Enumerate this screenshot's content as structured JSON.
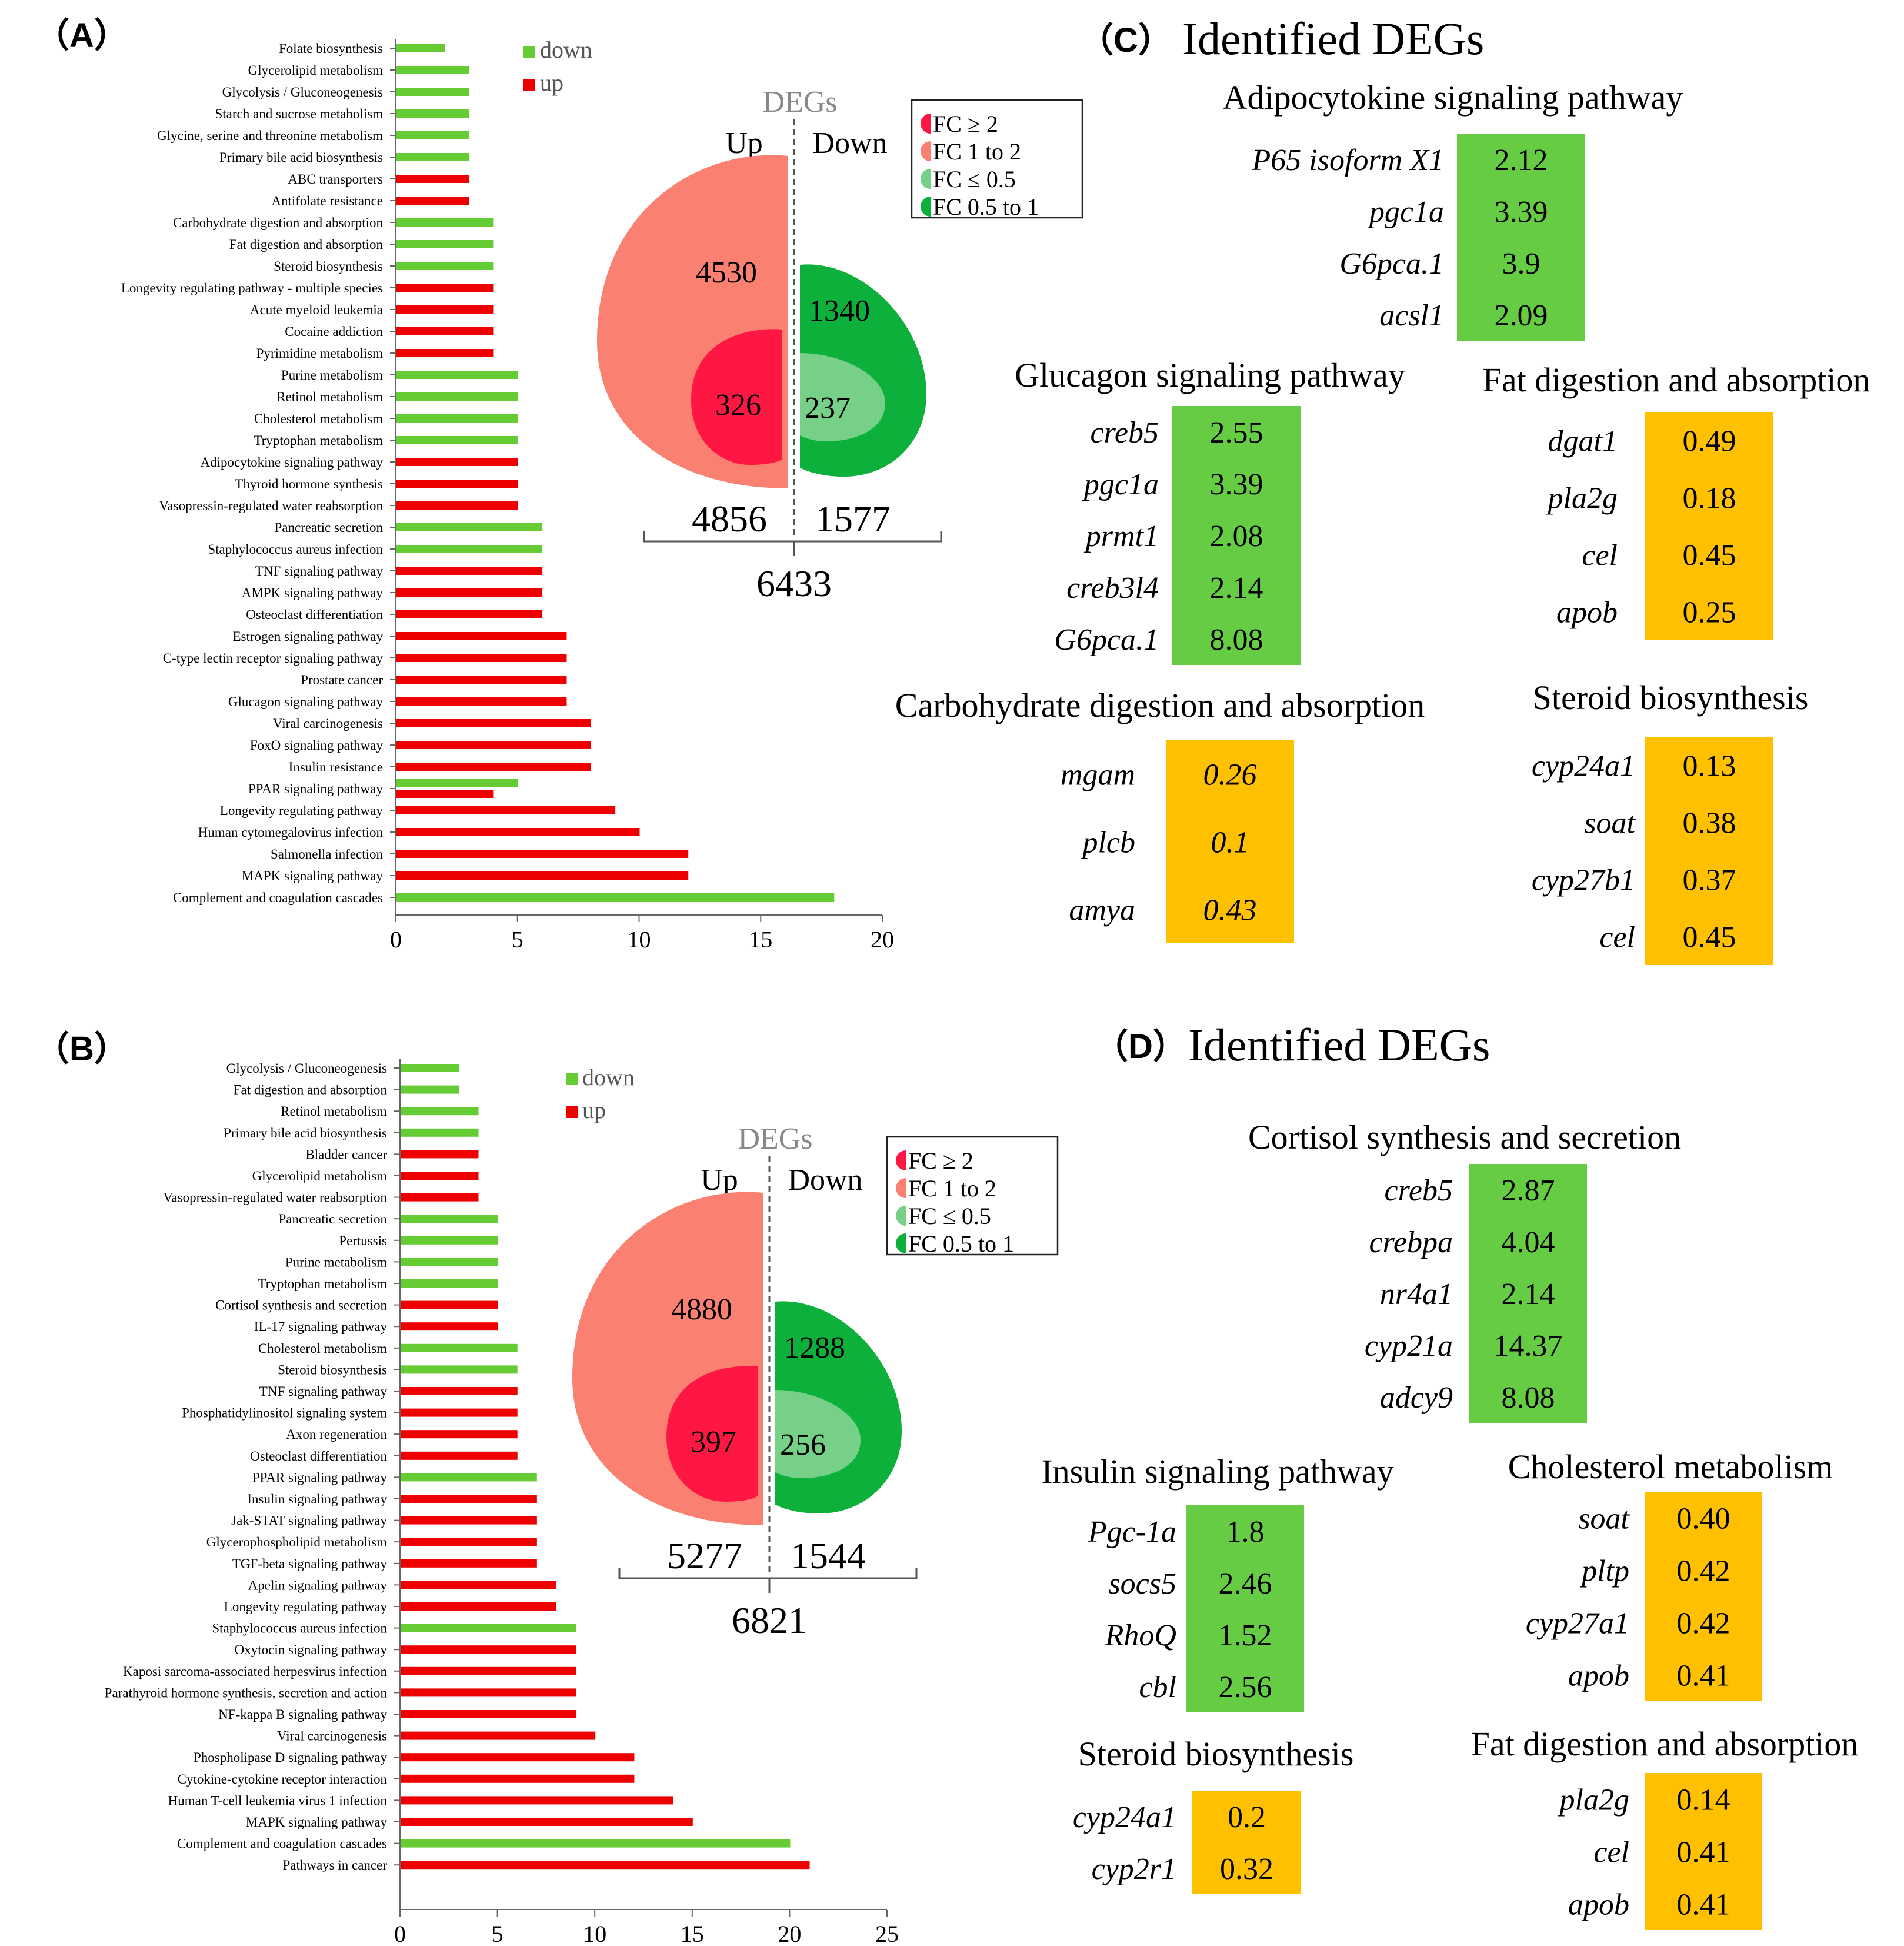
{
  "colors": {
    "down": "#66CC33",
    "up": "#EE0000",
    "fc_ge2": "#FF1744",
    "fc_1to2": "#FA8072",
    "fc_le05": "#77D087",
    "fc_05to1": "#0DB03B",
    "deg_green": "#66CC44",
    "deg_orange": "#FFC000",
    "axis": "#666666",
    "deg_title": "#888888"
  },
  "panels": {
    "A": {
      "label": "（A）"
    },
    "B": {
      "label": "（B）"
    },
    "C": {
      "label": "（C）",
      "title": "Identified DEGs"
    },
    "D": {
      "label": "（D）",
      "title": "Identified DEGs"
    }
  },
  "legend": {
    "down": "down",
    "up": "up"
  },
  "fc_legend": [
    "FC ≥ 2",
    "FC 1 to 2",
    "FC ≤ 0.5",
    "FC 0.5 to 1"
  ],
  "chart_data": [
    {
      "id": "A",
      "type": "bar",
      "orientation": "horizontal",
      "categories": [
        "Folate biosynthesis",
        "Glycerolipid metabolism",
        "Glycolysis / Gluconeogenesis",
        "Starch and sucrose metabolism",
        "Glycine, serine and threonine metabolism",
        "Primary bile acid biosynthesis",
        "ABC transporters",
        "Antifolate resistance",
        "Carbohydrate digestion and absorption",
        "Fat digestion and absorption",
        "Steroid biosynthesis",
        "Longevity regulating pathway - multiple species",
        "Acute myeloid leukemia",
        "Cocaine addiction",
        "Pyrimidine metabolism",
        "Purine metabolism",
        "Retinol metabolism",
        "Cholesterol metabolism",
        "Tryptophan metabolism",
        "Adipocytokine signaling pathway",
        "Thyroid hormone synthesis",
        "Vasopressin-regulated water reabsorption",
        "Pancreatic secretion",
        "Staphylococcus aureus infection",
        "TNF signaling pathway",
        "AMPK signaling pathway",
        "Osteoclast differentiation",
        "Estrogen signaling pathway",
        "C-type lectin receptor signaling pathway",
        "Prostate cancer",
        "Glucagon signaling pathway",
        "Viral carcinogenesis",
        "FoxO signaling pathway",
        "Insulin resistance",
        "PPAR signaling pathway",
        "Longevity regulating pathway",
        "Human cytomegalovirus infection",
        "Salmonella infection",
        "MAPK signaling pathway",
        "Complement and coagulation cascades"
      ],
      "series": [
        {
          "name": "down",
          "values": [
            2,
            3,
            3,
            3,
            3,
            3,
            0,
            0,
            4,
            4,
            4,
            0,
            0,
            0,
            0,
            5,
            5,
            5,
            5,
            0,
            0,
            0,
            6,
            6,
            0,
            0,
            0,
            0,
            0,
            0,
            0,
            0,
            0,
            0,
            5,
            0,
            0,
            0,
            0,
            18
          ]
        },
        {
          "name": "up",
          "values": [
            0,
            0,
            0,
            0,
            0,
            0,
            3,
            3,
            0,
            0,
            0,
            4,
            4,
            4,
            4,
            0,
            0,
            0,
            0,
            5,
            5,
            5,
            0,
            0,
            6,
            6,
            6,
            7,
            7,
            7,
            7,
            8,
            8,
            8,
            4,
            9,
            10,
            12,
            12,
            0
          ]
        }
      ],
      "xlim": [
        0,
        20
      ],
      "xticks": [
        "0",
        "5",
        "10",
        "15",
        "20"
      ],
      "legend_position": "top-right"
    },
    {
      "id": "B",
      "type": "bar",
      "orientation": "horizontal",
      "categories": [
        "Glycolysis / Gluconeogenesis",
        "Fat digestion and absorption",
        "Retinol metabolism",
        "Primary bile acid biosynthesis",
        "Bladder cancer",
        "Glycerolipid metabolism",
        "Vasopressin-regulated water reabsorption",
        "Pancreatic secretion",
        "Pertussis",
        "Purine metabolism",
        "Tryptophan metabolism",
        "Cortisol synthesis and secretion",
        "IL-17 signaling pathway",
        "Cholesterol metabolism",
        "Steroid biosynthesis",
        "TNF signaling pathway",
        "Phosphatidylinositol signaling system",
        "Axon regeneration",
        "Osteoclast differentiation",
        "PPAR signaling pathway",
        "Insulin signaling pathway",
        "Jak-STAT signaling pathway",
        "Glycerophospholipid metabolism",
        "TGF-beta signaling pathway",
        "Apelin signaling pathway",
        "Longevity regulating pathway",
        "Staphylococcus aureus infection",
        "Oxytocin signaling pathway",
        "Kaposi sarcoma-associated herpesvirus infection",
        "Parathyroid hormone synthesis, secretion and action",
        "NF-kappa B signaling pathway",
        "Viral carcinogenesis",
        "Phospholipase D signaling pathway",
        "Cytokine-cytokine receptor interaction",
        "Human T-cell leukemia virus 1 infection",
        "MAPK signaling pathway",
        "Complement and coagulation cascades",
        "Pathways in cancer"
      ],
      "series": [
        {
          "name": "down",
          "values": [
            3,
            3,
            4,
            4,
            0,
            0,
            0,
            5,
            5,
            5,
            5,
            0,
            0,
            6,
            6,
            0,
            0,
            0,
            0,
            7,
            0,
            0,
            0,
            0,
            0,
            0,
            9,
            0,
            0,
            0,
            0,
            0,
            0,
            0,
            0,
            0,
            20,
            0
          ]
        },
        {
          "name": "up",
          "values": [
            0,
            0,
            0,
            0,
            4,
            4,
            4,
            0,
            0,
            0,
            0,
            5,
            5,
            0,
            0,
            6,
            6,
            6,
            6,
            0,
            7,
            7,
            7,
            7,
            8,
            8,
            0,
            9,
            9,
            9,
            9,
            10,
            12,
            12,
            14,
            15,
            0,
            21
          ]
        }
      ],
      "xlim": [
        0,
        25
      ],
      "xticks": [
        "0",
        "5",
        "10",
        "15",
        "20",
        "25"
      ],
      "legend_position": "top-right"
    }
  ],
  "venn": [
    {
      "id": "A",
      "title": "DEGs",
      "up_label": "Up",
      "down_label": "Down",
      "up_outer": "4530",
      "up_inner": "326",
      "down_outer": "1340",
      "down_inner": "237",
      "up_total": "4856",
      "down_total": "1577",
      "total": "6433"
    },
    {
      "id": "B",
      "title": "DEGs",
      "up_label": "Up",
      "down_label": "Down",
      "up_outer": "4880",
      "up_inner": "397",
      "down_outer": "1288",
      "down_inner": "256",
      "up_total": "5277",
      "down_total": "1544",
      "total": "6821"
    }
  ],
  "deg_tables": {
    "C": [
      {
        "title": "Adipocytokine signaling pathway",
        "color": "green",
        "italic_values": false,
        "genes": [
          "P65 isoform X1",
          "pgc1a",
          "G6pca.1",
          "acsl1"
        ],
        "values": [
          "2.12",
          "3.39",
          "3.9",
          "2.09"
        ]
      },
      {
        "title": "Glucagon signaling pathway",
        "color": "green",
        "italic_values": false,
        "genes": [
          "creb5",
          "pgc1a",
          "prmt1",
          "creb3l4",
          "G6pca.1"
        ],
        "values": [
          "2.55",
          "3.39",
          "2.08",
          "2.14",
          "8.08"
        ]
      },
      {
        "title": "Fat digestion and absorption",
        "color": "orange",
        "italic_values": false,
        "genes": [
          "dgat1",
          "pla2g",
          "cel",
          "apob"
        ],
        "values": [
          "0.49",
          "0.18",
          "0.45",
          "0.25"
        ]
      },
      {
        "title": "Carbohydrate digestion and absorption",
        "color": "orange",
        "italic_values": true,
        "genes": [
          "mgam",
          "plcb",
          "amya"
        ],
        "values": [
          "0.26",
          "0.1",
          "0.43"
        ]
      },
      {
        "title": "Steroid biosynthesis",
        "color": "orange",
        "italic_values": false,
        "genes": [
          "cyp24a1",
          "soat",
          "cyp27b1",
          "cel"
        ],
        "values": [
          "0.13",
          "0.38",
          "0.37",
          "0.45"
        ]
      }
    ],
    "D": [
      {
        "title": "Cortisol synthesis and secretion",
        "color": "green",
        "italic_values": false,
        "genes": [
          "creb5",
          "crebpa",
          "nr4a1",
          "cyp21a",
          "adcy9"
        ],
        "values": [
          "2.87",
          "4.04",
          "2.14",
          "14.37",
          "8.08"
        ]
      },
      {
        "title": "Insulin signaling pathway",
        "color": "green",
        "italic_values": false,
        "genes": [
          "Pgc-1a",
          "socs5",
          "RhoQ",
          "cbl"
        ],
        "values": [
          "1.8",
          "2.46",
          "1.52",
          "2.56"
        ]
      },
      {
        "title": "Cholesterol metabolism",
        "color": "orange",
        "italic_values": false,
        "genes": [
          "soat",
          "pltp",
          "cyp27a1",
          "apob"
        ],
        "values": [
          "0.40",
          "0.42",
          "0.42",
          "0.41"
        ]
      },
      {
        "title": "Steroid biosynthesis",
        "color": "orange",
        "italic_values": false,
        "genes": [
          "cyp24a1",
          "cyp2r1"
        ],
        "values": [
          "0.2",
          "0.32"
        ]
      },
      {
        "title": "Fat digestion and absorption",
        "color": "orange",
        "italic_values": false,
        "genes": [
          "pla2g",
          "cel",
          "apob"
        ],
        "values": [
          "0.14",
          "0.41",
          "0.41"
        ]
      }
    ]
  }
}
